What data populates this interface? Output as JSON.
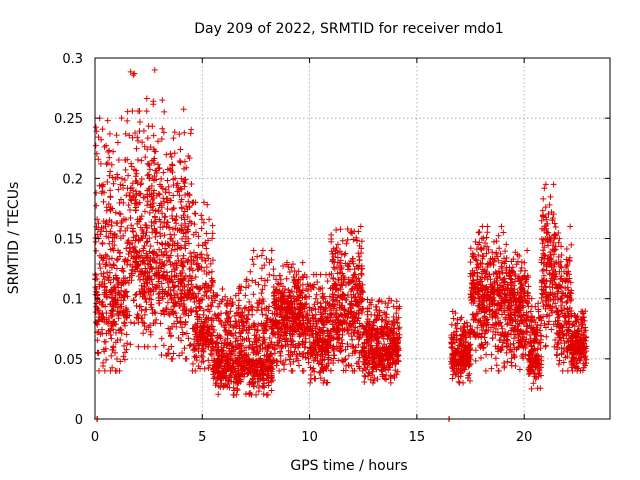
{
  "chart_data": {
    "type": "scatter",
    "title": "Day 209 of 2022, SRMTID for receiver mdo1",
    "xlabel": "GPS time / hours",
    "ylabel": "SRMTID / TECUs",
    "xlim": [
      0,
      24
    ],
    "ylim": [
      0,
      0.3
    ],
    "xticks": [
      0,
      5,
      10,
      15,
      20
    ],
    "yticks": [
      0,
      0.05,
      0.1,
      0.15,
      0.2,
      0.25,
      0.3
    ],
    "xtick_labels": [
      "0",
      "5",
      "10",
      "15",
      "20"
    ],
    "ytick_labels": [
      "0",
      "0.05",
      "0.1",
      "0.15",
      "0.2",
      "0.25",
      "0.3"
    ],
    "grid": true,
    "marker": "+",
    "color": "#e00000",
    "segments": [
      {
        "x0": 0.0,
        "x1": 1.5,
        "ymin": 0.04,
        "ymax": 0.25,
        "center": 0.11
      },
      {
        "x0": 1.5,
        "x1": 3.0,
        "ymin": 0.06,
        "ymax": 0.29,
        "center": 0.14
      },
      {
        "x0": 3.0,
        "x1": 4.5,
        "ymin": 0.05,
        "ymax": 0.265,
        "center": 0.12
      },
      {
        "x0": 4.5,
        "x1": 5.5,
        "ymin": 0.04,
        "ymax": 0.18,
        "center": 0.08
      },
      {
        "x0": 5.5,
        "x1": 7.0,
        "ymin": 0.02,
        "ymax": 0.11,
        "center": 0.05
      },
      {
        "x0": 7.0,
        "x1": 8.3,
        "ymin": 0.02,
        "ymax": 0.14,
        "center": 0.05
      },
      {
        "x0": 8.3,
        "x1": 10.0,
        "ymin": 0.04,
        "ymax": 0.13,
        "center": 0.085
      },
      {
        "x0": 10.0,
        "x1": 11.0,
        "ymin": 0.03,
        "ymax": 0.12,
        "center": 0.065
      },
      {
        "x0": 11.0,
        "x1": 12.5,
        "ymin": 0.04,
        "ymax": 0.16,
        "center": 0.09
      },
      {
        "x0": 12.5,
        "x1": 14.2,
        "ymin": 0.03,
        "ymax": 0.1,
        "center": 0.06
      },
      {
        "x0": 16.6,
        "x1": 17.5,
        "ymin": 0.03,
        "ymax": 0.09,
        "center": 0.055
      },
      {
        "x0": 17.5,
        "x1": 19.2,
        "ymin": 0.04,
        "ymax": 0.16,
        "center": 0.1
      },
      {
        "x0": 19.2,
        "x1": 20.2,
        "ymin": 0.04,
        "ymax": 0.14,
        "center": 0.09
      },
      {
        "x0": 20.2,
        "x1": 20.8,
        "ymin": 0.025,
        "ymax": 0.1,
        "center": 0.055
      },
      {
        "x0": 20.8,
        "x1": 21.5,
        "ymin": 0.06,
        "ymax": 0.195,
        "center": 0.12
      },
      {
        "x0": 21.5,
        "x1": 22.2,
        "ymin": 0.04,
        "ymax": 0.16,
        "center": 0.09
      },
      {
        "x0": 22.2,
        "x1": 22.9,
        "ymin": 0.04,
        "ymax": 0.09,
        "center": 0.06
      }
    ],
    "zero_points": [
      {
        "x": 0.1,
        "y": 0
      },
      {
        "x": 16.5,
        "y": 0
      }
    ]
  }
}
